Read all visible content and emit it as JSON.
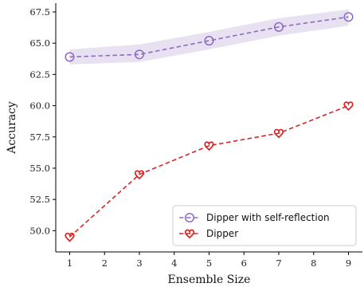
{
  "chart_data": {
    "type": "line",
    "xlabel": "Ensemble Size",
    "ylabel": "Accuracy",
    "xlim": [
      0.6,
      9.4
    ],
    "ylim": [
      48.3,
      68.2
    ],
    "x_ticks": [
      "1",
      "2",
      "3",
      "4",
      "5",
      "6",
      "7",
      "8",
      "9"
    ],
    "y_ticks": [
      "50.0",
      "52.5",
      "55.0",
      "57.5",
      "60.0",
      "62.5",
      "65.0",
      "67.5"
    ],
    "grid": false,
    "legend_position": "lower-right",
    "series": [
      {
        "name": "Dipper with self-reflection",
        "color": "#8e6bbf",
        "marker": "circle",
        "line_style": "dashed",
        "x": [
          1,
          3,
          5,
          7,
          9
        ],
        "y": [
          63.9,
          64.1,
          65.2,
          66.3,
          67.1
        ],
        "band_lower": [
          63.3,
          63.5,
          64.5,
          65.6,
          66.4
        ],
        "band_upper": [
          64.5,
          64.9,
          65.9,
          67.0,
          67.7
        ]
      },
      {
        "name": "Dipper",
        "color": "#d62728",
        "marker": "heart",
        "line_style": "dashed",
        "x": [
          1,
          3,
          5,
          7,
          9
        ],
        "y": [
          49.5,
          54.5,
          56.8,
          57.8,
          60.0
        ]
      }
    ]
  }
}
